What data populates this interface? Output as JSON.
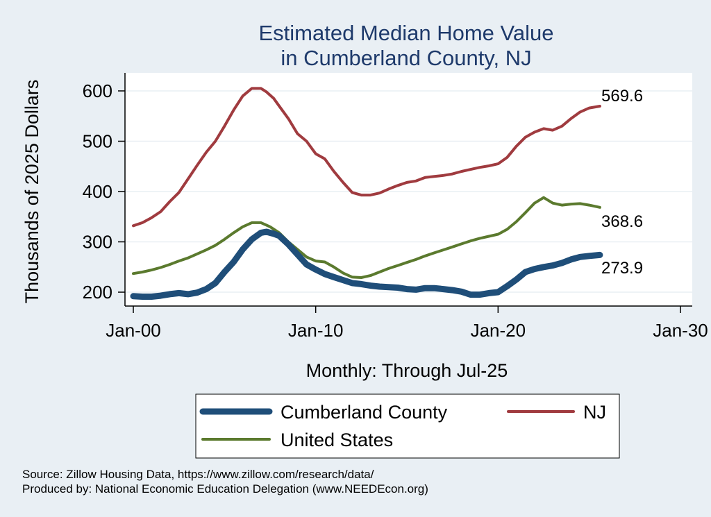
{
  "chart_data": {
    "type": "line",
    "title": [
      "Estimated Median Home Value",
      "in Cumberland County, NJ"
    ],
    "ylabel": "Thousands of 2025 Dollars",
    "xlabel": "Monthly: Through Jul-25",
    "ylim": [
      180,
      620
    ],
    "yticks": [
      200,
      300,
      400,
      500,
      600
    ],
    "xlim": [
      2000.0,
      2030.0
    ],
    "xticks": [
      {
        "value": 2000,
        "label": "Jan-00"
      },
      {
        "value": 2010,
        "label": "Jan-10"
      },
      {
        "value": 2020,
        "label": "Jan-20"
      },
      {
        "value": 2030,
        "label": "Jan-30"
      }
    ],
    "series": [
      {
        "name": "NJ",
        "color": "#a03b3f",
        "width": 4,
        "end_label": "569.6",
        "points": [
          [
            2000.0,
            332
          ],
          [
            2000.5,
            338
          ],
          [
            2001.0,
            348
          ],
          [
            2001.5,
            360
          ],
          [
            2002.0,
            380
          ],
          [
            2002.5,
            398
          ],
          [
            2003.0,
            425
          ],
          [
            2003.5,
            452
          ],
          [
            2004.0,
            478
          ],
          [
            2004.5,
            500
          ],
          [
            2005.0,
            530
          ],
          [
            2005.5,
            562
          ],
          [
            2006.0,
            590
          ],
          [
            2006.5,
            605
          ],
          [
            2007.0,
            605
          ],
          [
            2007.3,
            598
          ],
          [
            2007.7,
            585
          ],
          [
            2008.0,
            570
          ],
          [
            2008.5,
            545
          ],
          [
            2009.0,
            515
          ],
          [
            2009.5,
            500
          ],
          [
            2010.0,
            475
          ],
          [
            2010.5,
            465
          ],
          [
            2011.0,
            440
          ],
          [
            2011.5,
            418
          ],
          [
            2012.0,
            398
          ],
          [
            2012.5,
            393
          ],
          [
            2013.0,
            393
          ],
          [
            2013.5,
            397
          ],
          [
            2014.0,
            405
          ],
          [
            2014.5,
            412
          ],
          [
            2015.0,
            418
          ],
          [
            2015.5,
            421
          ],
          [
            2016.0,
            428
          ],
          [
            2016.5,
            430
          ],
          [
            2017.0,
            432
          ],
          [
            2017.5,
            435
          ],
          [
            2018.0,
            440
          ],
          [
            2018.5,
            444
          ],
          [
            2019.0,
            448
          ],
          [
            2019.5,
            451
          ],
          [
            2020.0,
            455
          ],
          [
            2020.5,
            468
          ],
          [
            2021.0,
            490
          ],
          [
            2021.5,
            508
          ],
          [
            2022.0,
            518
          ],
          [
            2022.5,
            525
          ],
          [
            2023.0,
            522
          ],
          [
            2023.5,
            530
          ],
          [
            2024.0,
            545
          ],
          [
            2024.5,
            558
          ],
          [
            2025.0,
            566
          ],
          [
            2025.58,
            569.6
          ]
        ]
      },
      {
        "name": "United States",
        "color": "#5b7a2e",
        "width": 4,
        "end_label": "368.6",
        "points": [
          [
            2000.0,
            237
          ],
          [
            2000.5,
            240
          ],
          [
            2001.0,
            244
          ],
          [
            2001.5,
            249
          ],
          [
            2002.0,
            255
          ],
          [
            2002.5,
            262
          ],
          [
            2003.0,
            268
          ],
          [
            2003.5,
            276
          ],
          [
            2004.0,
            284
          ],
          [
            2004.5,
            293
          ],
          [
            2005.0,
            305
          ],
          [
            2005.5,
            318
          ],
          [
            2006.0,
            330
          ],
          [
            2006.5,
            338
          ],
          [
            2007.0,
            338
          ],
          [
            2007.5,
            330
          ],
          [
            2008.0,
            318
          ],
          [
            2008.5,
            300
          ],
          [
            2009.0,
            285
          ],
          [
            2009.5,
            270
          ],
          [
            2010.0,
            262
          ],
          [
            2010.5,
            260
          ],
          [
            2011.0,
            250
          ],
          [
            2011.5,
            238
          ],
          [
            2012.0,
            230
          ],
          [
            2012.5,
            229
          ],
          [
            2013.0,
            233
          ],
          [
            2013.5,
            240
          ],
          [
            2014.0,
            247
          ],
          [
            2014.5,
            253
          ],
          [
            2015.0,
            259
          ],
          [
            2015.5,
            265
          ],
          [
            2016.0,
            272
          ],
          [
            2016.5,
            278
          ],
          [
            2017.0,
            284
          ],
          [
            2017.5,
            290
          ],
          [
            2018.0,
            296
          ],
          [
            2018.5,
            302
          ],
          [
            2019.0,
            307
          ],
          [
            2019.5,
            311
          ],
          [
            2020.0,
            315
          ],
          [
            2020.5,
            325
          ],
          [
            2021.0,
            340
          ],
          [
            2021.5,
            358
          ],
          [
            2022.0,
            377
          ],
          [
            2022.5,
            388
          ],
          [
            2023.0,
            377
          ],
          [
            2023.5,
            373
          ],
          [
            2024.0,
            375
          ],
          [
            2024.5,
            376
          ],
          [
            2025.0,
            373
          ],
          [
            2025.58,
            368.6
          ]
        ]
      },
      {
        "name": "Cumberland County",
        "color": "#1f4e79",
        "width": 9,
        "end_label": "273.9",
        "points": [
          [
            2000.0,
            192
          ],
          [
            2000.5,
            191
          ],
          [
            2001.0,
            191
          ],
          [
            2001.5,
            193
          ],
          [
            2002.0,
            196
          ],
          [
            2002.5,
            198
          ],
          [
            2003.0,
            196
          ],
          [
            2003.5,
            199
          ],
          [
            2004.0,
            206
          ],
          [
            2004.5,
            218
          ],
          [
            2005.0,
            240
          ],
          [
            2005.5,
            260
          ],
          [
            2006.0,
            285
          ],
          [
            2006.5,
            305
          ],
          [
            2007.0,
            318
          ],
          [
            2007.3,
            320
          ],
          [
            2007.7,
            316
          ],
          [
            2008.0,
            312
          ],
          [
            2008.5,
            295
          ],
          [
            2009.0,
            275
          ],
          [
            2009.5,
            255
          ],
          [
            2010.0,
            245
          ],
          [
            2010.5,
            236
          ],
          [
            2011.0,
            230
          ],
          [
            2011.5,
            224
          ],
          [
            2012.0,
            218
          ],
          [
            2012.5,
            216
          ],
          [
            2013.0,
            213
          ],
          [
            2013.5,
            211
          ],
          [
            2014.0,
            210
          ],
          [
            2014.5,
            209
          ],
          [
            2015.0,
            206
          ],
          [
            2015.5,
            205
          ],
          [
            2016.0,
            208
          ],
          [
            2016.5,
            208
          ],
          [
            2017.0,
            206
          ],
          [
            2017.5,
            204
          ],
          [
            2018.0,
            201
          ],
          [
            2018.5,
            195
          ],
          [
            2019.0,
            195
          ],
          [
            2019.5,
            198
          ],
          [
            2020.0,
            200
          ],
          [
            2020.5,
            212
          ],
          [
            2021.0,
            225
          ],
          [
            2021.5,
            240
          ],
          [
            2022.0,
            246
          ],
          [
            2022.5,
            250
          ],
          [
            2023.0,
            253
          ],
          [
            2023.5,
            258
          ],
          [
            2024.0,
            265
          ],
          [
            2024.5,
            270
          ],
          [
            2025.0,
            272
          ],
          [
            2025.58,
            273.9
          ]
        ]
      }
    ],
    "legend": [
      {
        "name": "Cumberland County",
        "color": "#1f4e79",
        "width": 9
      },
      {
        "name": "NJ",
        "color": "#a03b3f",
        "width": 4
      },
      {
        "name": "United States",
        "color": "#5b7a2e",
        "width": 4
      }
    ],
    "colors": {
      "background": "#e9eff4",
      "plot_background": "#ffffff",
      "grid": "#e9eff4",
      "title": "#1e3a6b"
    }
  },
  "footer": {
    "source": "Source: Zillow Housing Data, https://www.zillow.com/research/data/",
    "produced_by": "Produced by: National Economic Education Delegation (www.NEEDEcon.org)"
  }
}
